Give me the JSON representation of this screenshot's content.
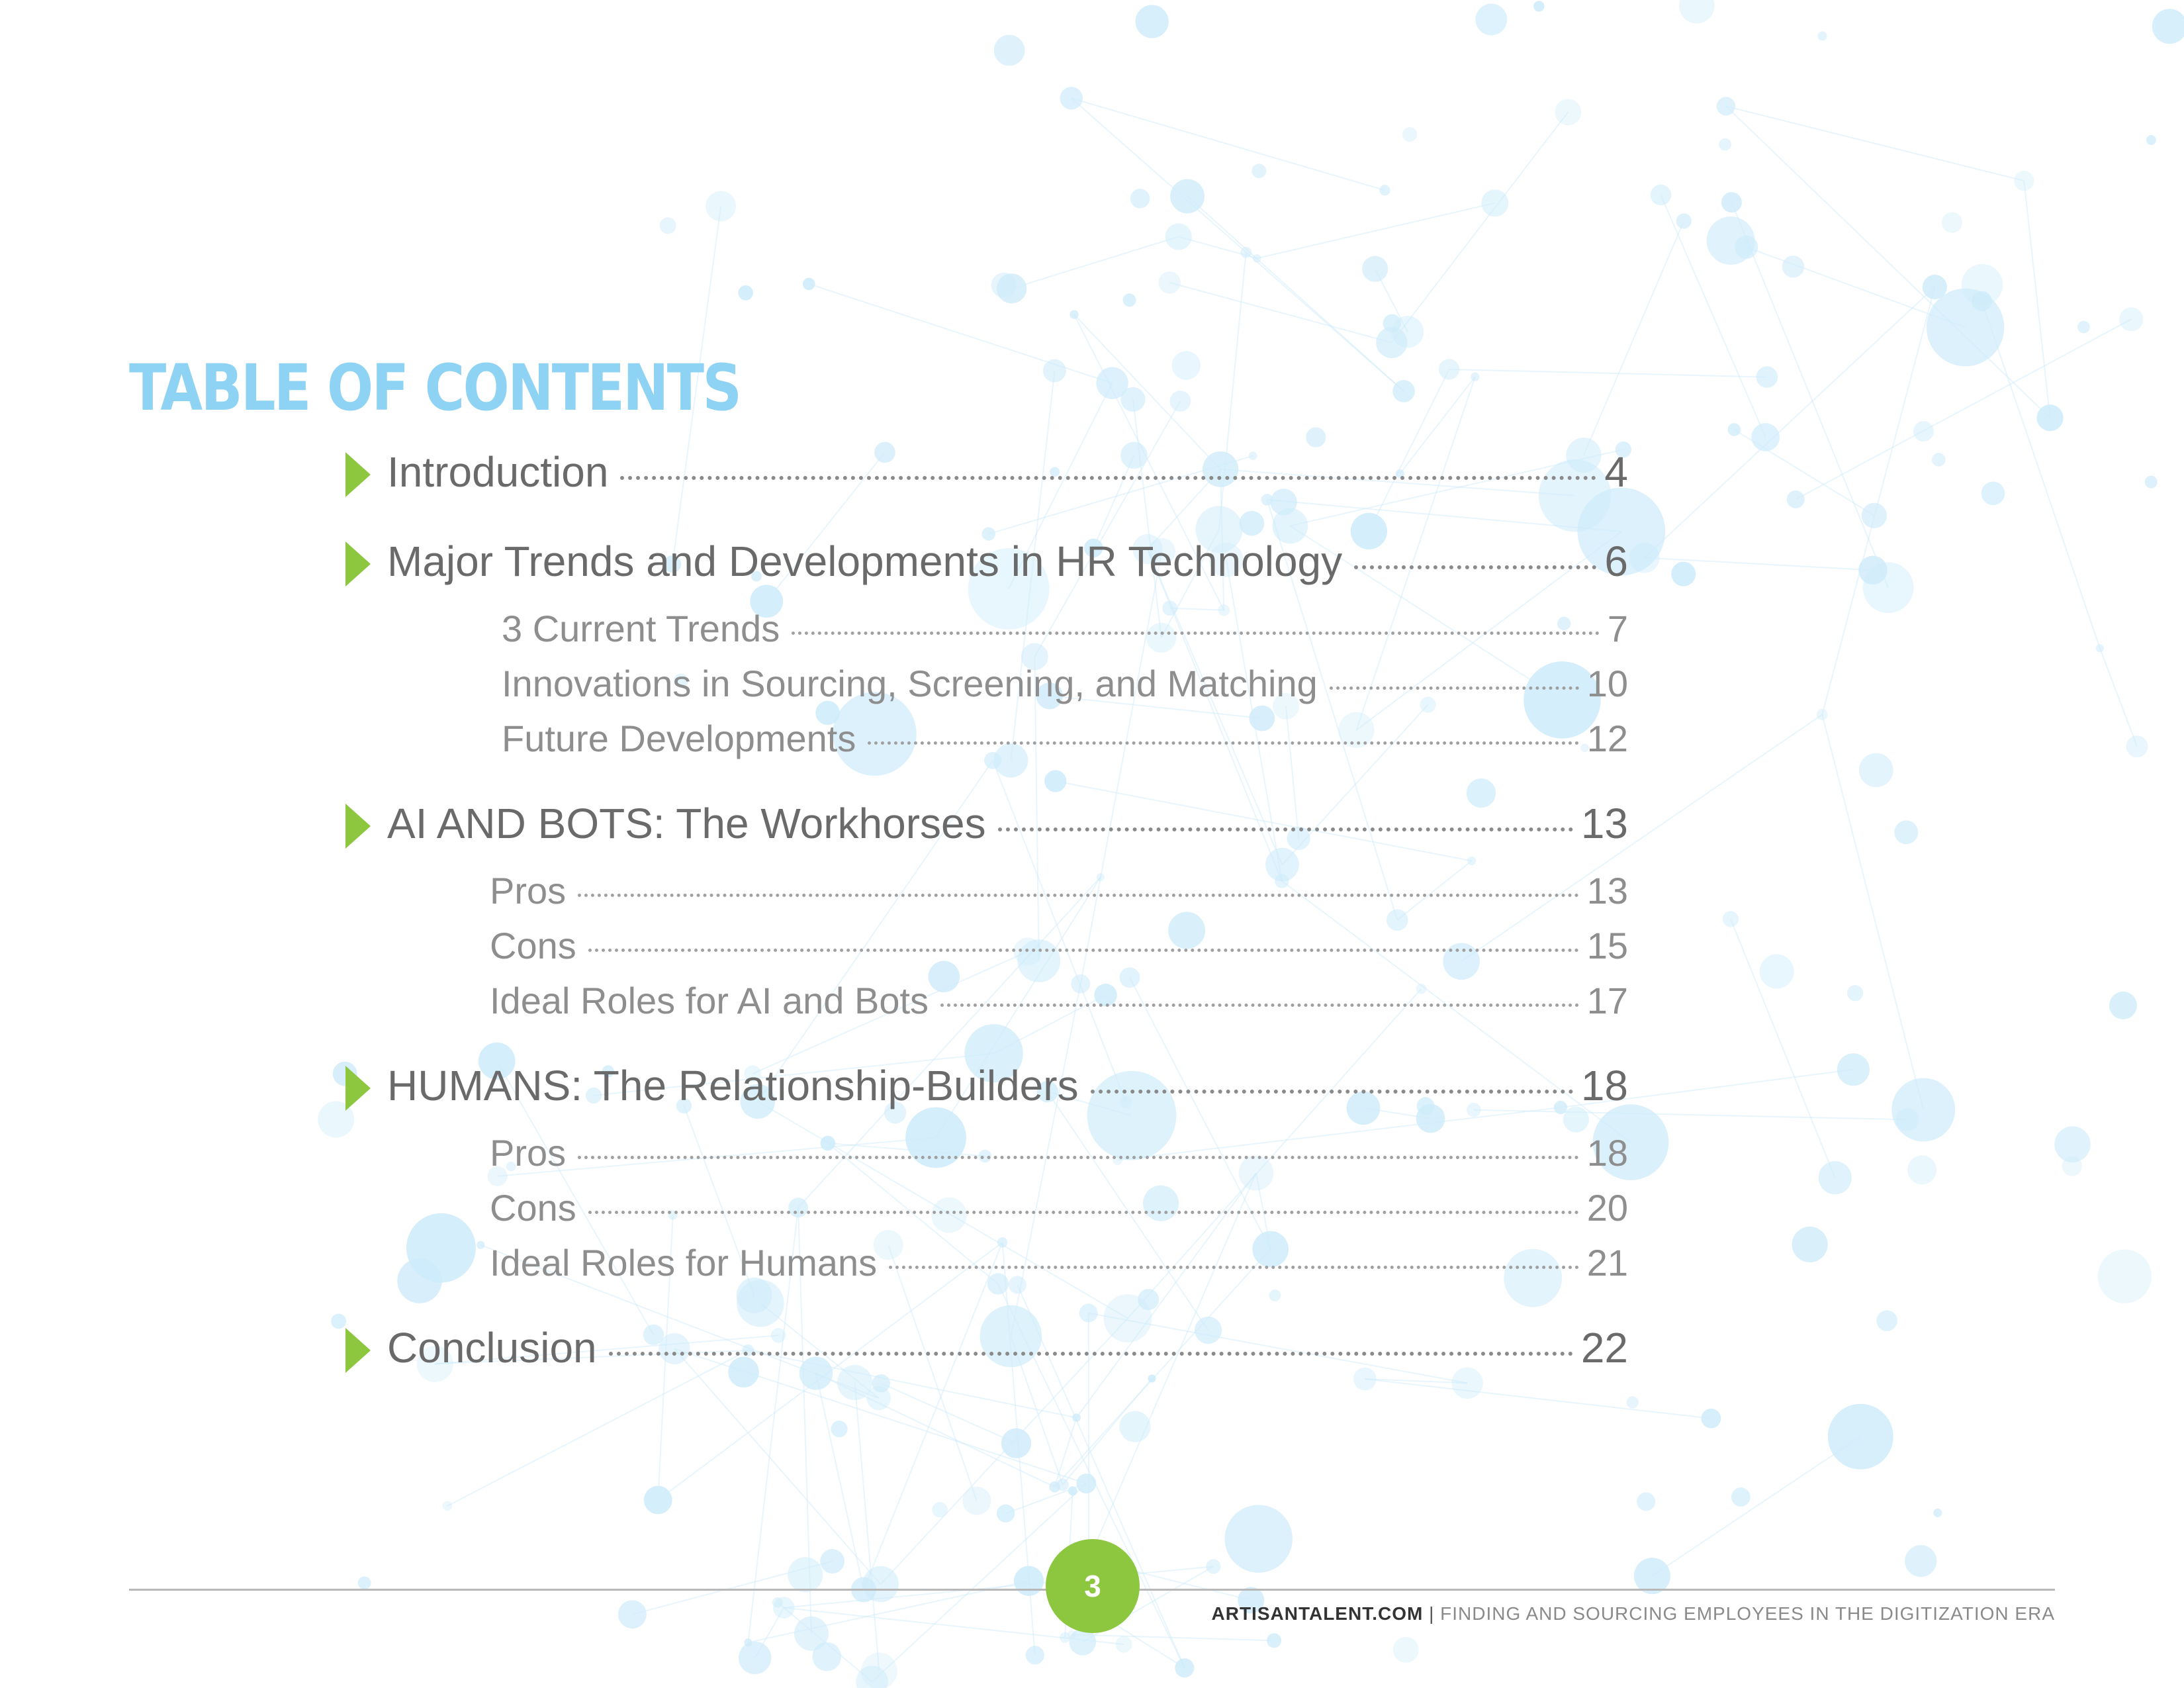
{
  "title": "TABLE OF CONTENTS",
  "toc": [
    {
      "label": "Introduction",
      "page": "4",
      "level": "main"
    },
    {
      "label": "Major Trends and Developments in HR Technology",
      "page": "6",
      "level": "main"
    },
    {
      "label": "3 Current Trends",
      "page": "7",
      "level": "sub"
    },
    {
      "label": "Innovations in Sourcing, Screening, and Matching",
      "page": "10",
      "level": "sub"
    },
    {
      "label": "Future Developments",
      "page": "12",
      "level": "sub"
    },
    {
      "label": "AI AND BOTS: The Workhorses",
      "page": "13",
      "level": "main"
    },
    {
      "label": "Pros",
      "page": "13",
      "level": "sub"
    },
    {
      "label": "Cons",
      "page": "15",
      "level": "sub"
    },
    {
      "label": "Ideal Roles for AI and Bots",
      "page": "17",
      "level": "sub"
    },
    {
      "label": "HUMANS: The Relationship-Builders",
      "page": "18",
      "level": "main"
    },
    {
      "label": "Pros",
      "page": "18",
      "level": "sub"
    },
    {
      "label": "Cons",
      "page": "20",
      "level": "sub"
    },
    {
      "label": "Ideal Roles for Humans",
      "page": "21",
      "level": "sub"
    },
    {
      "label": "Conclusion",
      "page": "22",
      "level": "main"
    }
  ],
  "footer": {
    "page_number": "3",
    "site": "ARTISANTALENT.COM",
    "separator": "|",
    "subtitle": "FINDING AND SOURCING EMPLOYEES IN THE DIGITIZATION ERA"
  },
  "colors": {
    "title": "#8fd3f4",
    "accent": "#8dc63f",
    "network": "#cdebfa"
  },
  "icons": {
    "bullet": "green-triangle-arrow-icon"
  }
}
